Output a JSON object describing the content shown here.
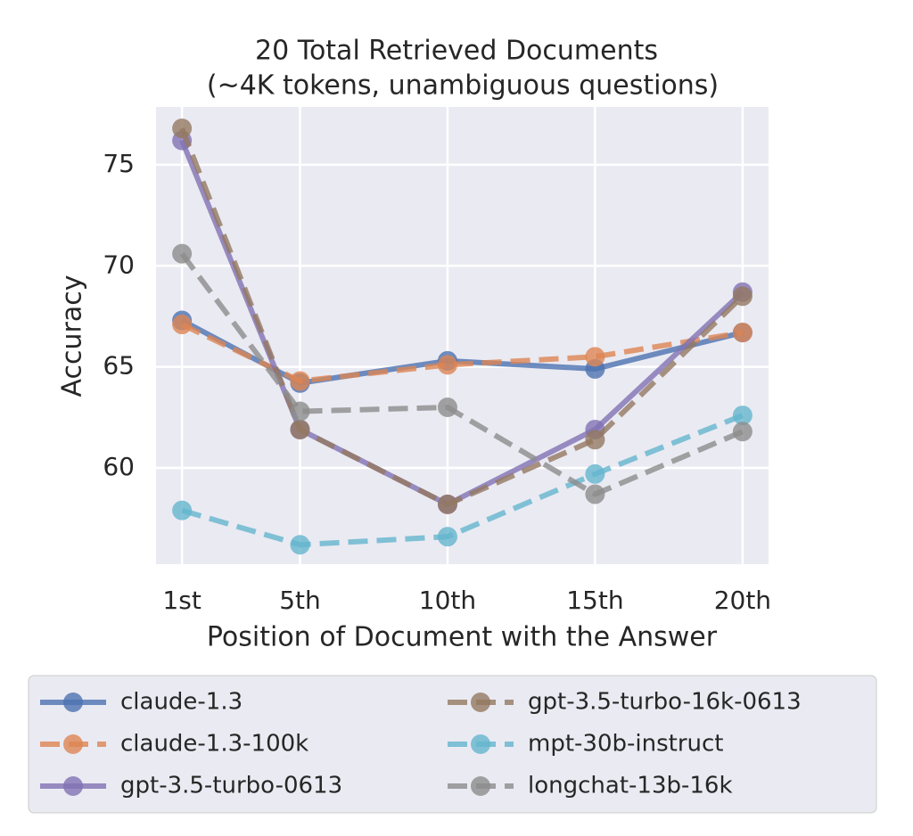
{
  "chart_data": {
    "type": "line",
    "title": "20 Total Retrieved Documents",
    "subtitle": "(~4K tokens, unambiguous questions)",
    "x_label": "Position of Document with the Answer",
    "y_label": "Accuracy",
    "x": [
      1,
      5,
      10,
      15,
      20
    ],
    "xlim": [
      0.12,
      20.88
    ],
    "xticks": [
      {
        "value": 1,
        "label": "1st"
      },
      {
        "value": 5,
        "label": "5th"
      },
      {
        "value": 10,
        "label": "10th"
      },
      {
        "value": 15,
        "label": "15th"
      },
      {
        "value": 20,
        "label": "20th"
      }
    ],
    "ylim": [
      55.24,
      77.86
    ],
    "yticks": [
      60,
      65,
      70,
      75
    ],
    "grid": true,
    "legend": "bottom",
    "series": [
      {
        "name": "claude-1.3",
        "color": "#4c72b0",
        "dashed": false,
        "values": [
          67.3,
          64.2,
          65.3,
          64.9,
          66.7
        ]
      },
      {
        "name": "claude-1.3-100k",
        "color": "#dd8452",
        "dashed": true,
        "values": [
          67.1,
          64.3,
          65.1,
          65.5,
          66.7
        ]
      },
      {
        "name": "gpt-3.5-turbo-0613",
        "color": "#8172b3",
        "dashed": false,
        "values": [
          76.2,
          61.9,
          58.2,
          61.9,
          68.7
        ]
      },
      {
        "name": "gpt-3.5-turbo-16k-0613",
        "color": "#937860",
        "dashed": true,
        "values": [
          76.8,
          61.9,
          58.2,
          61.4,
          68.5
        ]
      },
      {
        "name": "mpt-30b-instruct",
        "color": "#64b5cd",
        "dashed": true,
        "values": [
          57.9,
          56.2,
          56.6,
          59.7,
          62.6
        ]
      },
      {
        "name": "longchat-13b-16k",
        "color": "#8c8c8c",
        "dashed": true,
        "values": [
          70.6,
          62.8,
          63.0,
          58.7,
          61.8
        ]
      }
    ]
  }
}
